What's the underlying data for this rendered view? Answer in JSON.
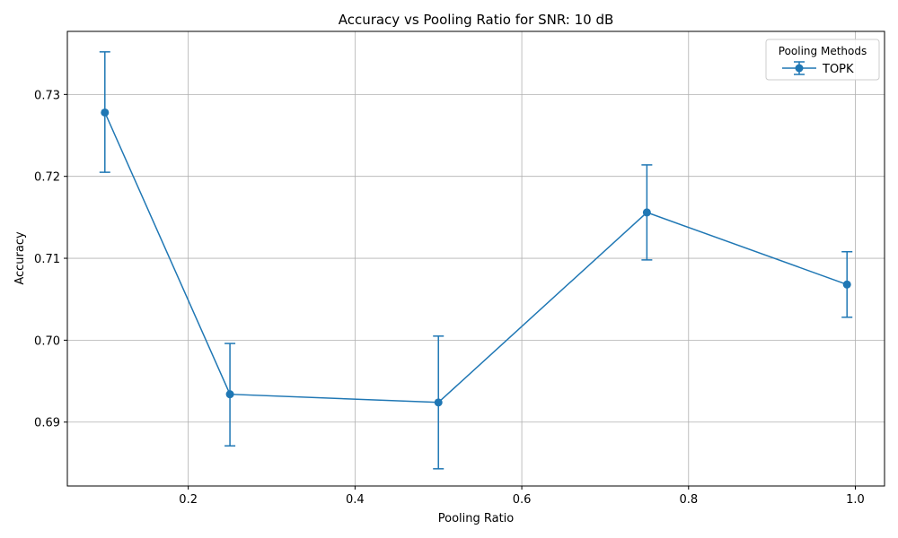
{
  "chart_data": {
    "type": "line",
    "title": "Accuracy vs Pooling Ratio for SNR: 10 dB",
    "xlabel": "Pooling Ratio",
    "ylabel": "Accuracy",
    "xlim": [
      0.055,
      1.035
    ],
    "ylim": [
      0.6822,
      0.7377
    ],
    "xticks": [
      0.2,
      0.4,
      0.6,
      0.8,
      1.0
    ],
    "xtick_labels": [
      "0.2",
      "0.4",
      "0.6",
      "0.8",
      "1.0"
    ],
    "yticks": [
      0.69,
      0.7,
      0.71,
      0.72,
      0.73
    ],
    "ytick_labels": [
      "0.69",
      "0.70",
      "0.71",
      "0.72",
      "0.73"
    ],
    "grid": true,
    "legend": {
      "title": "Pooling Methods",
      "placement": "top-right"
    },
    "series": [
      {
        "name": "TOPK",
        "color": "#1f77b4",
        "x": [
          0.1,
          0.25,
          0.5,
          0.75,
          0.99
        ],
        "y": [
          0.7278,
          0.6934,
          0.6924,
          0.7156,
          0.7068
        ],
        "err_low": [
          0.7205,
          0.6871,
          0.6843,
          0.7098,
          0.7028
        ],
        "err_high": [
          0.7352,
          0.6996,
          0.7005,
          0.7214,
          0.7108
        ]
      }
    ]
  }
}
